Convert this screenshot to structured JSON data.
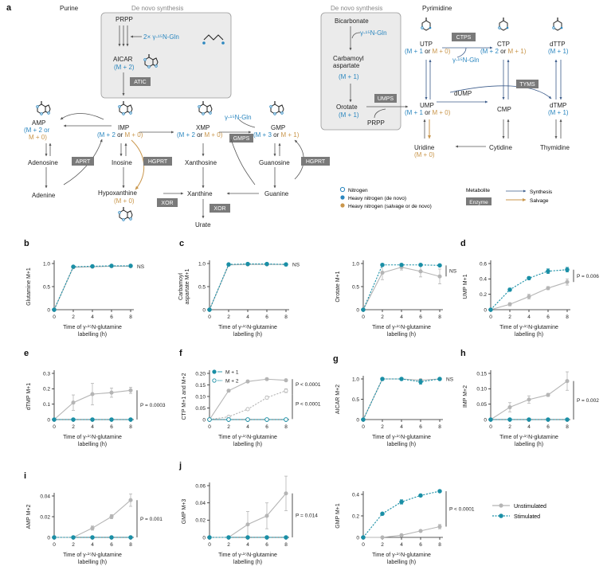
{
  "panel_a": {
    "letter": "a",
    "purine": "Purine",
    "pyrimidine": "Pyrimidine",
    "denovo_left": "De novo synthesis",
    "denovo_right": "De novo synthesis",
    "prpp_top": "PRPP",
    "gln_left": "2× γ-¹⁵N-Gln",
    "aicar": "AICAR",
    "aicar_m": "(M + 2)",
    "atic": "ATIC",
    "amp": "AMP",
    "amp_m1": "(M + 2 or",
    "amp_m2": "M + 0)",
    "imp": "IMP",
    "imp_m_a": "(M + 2",
    "imp_m_b": " or ",
    "imp_m_c": "M + 0)",
    "xmp": "XMP",
    "xmp_m_a": "(M + 2",
    "xmp_m_b": " or ",
    "xmp_m_c": "M + 0)",
    "gmp": "GMP",
    "gmp_m_a": "(M + 3",
    "gmp_m_b": " or ",
    "gmp_m_c": "M + 1)",
    "gln_gmp": "γ-¹⁵N-Gln",
    "gmps": "GMPS",
    "adenosine": "Adenosine",
    "aprt": "APRT",
    "adenine": "Adenine",
    "inosine": "Inosine",
    "hgprt1": "HGPRT",
    "hgprt2": "HGPRT",
    "xanthosine": "Xanthosine",
    "guanosine": "Guanosine",
    "hypoxanthine": "Hypoxanthine",
    "hypo_m": "(M + 0)",
    "xor1": "XOR",
    "xor2": "XOR",
    "xanthine": "Xanthine",
    "guanine": "Guanine",
    "urate": "Urate",
    "bicarbonate": "Bicarbonate",
    "gln_right": "γ-¹⁵N-Gln",
    "carbamoyl1": "Carbamoyl",
    "carbamoyl2": "aspartate",
    "carb_m": "(M + 1)",
    "orotate": "Orotate",
    "orot_m": "(M + 1)",
    "umps": "UMPS",
    "prpp_right": "PRPP",
    "utp": "UTP",
    "utp_m_a": "(M + 1",
    "utp_m_b": " or ",
    "utp_m_c": "M + 0)",
    "ctps": "CTPS",
    "gln_ctp": "γ-¹⁵N-Gln",
    "ctp": "CTP",
    "ctp_m_a": "(M + 2",
    "ctp_m_b": " or ",
    "ctp_m_c": "M + 1)",
    "dttp": "dTTP",
    "dttp_m": "(M + 1)",
    "ump": "UMP",
    "ump_m_a": "(M + 1",
    "ump_m_b": " or ",
    "ump_m_c": "M + 0)",
    "dump": "dUMP",
    "tyms": "TYMS",
    "cmp": "CMP",
    "dtmp": "dTMP",
    "dtmp_m": "(M + 1)",
    "uridine": "Uridine",
    "uridine_m": "(M + 0)",
    "cytidine": "Cytidine",
    "thymidine": "Thymidine"
  },
  "legend_a": {
    "nitrogen": "Nitrogen",
    "heavy_denovo": "Heavy nitrogen (de novo)",
    "heavy_salvage": "Heavy nitrogen (salvage or de novo)",
    "metabolite": "Metabolite",
    "enzyme": "Enzyme",
    "synthesis": "Synthesis",
    "salvage": "Salvage"
  },
  "colors": {
    "stimulated": "#1a8fa6",
    "unstimulated": "#b5b5b5",
    "label_blue": "#2a86bf",
    "label_gold": "#c9964b",
    "enzyme_box": "#7a7a7a",
    "denovo_box": "#ebebeb"
  },
  "xaxis_label_1": "Time of γ-¹⁵N-glutamine",
  "xaxis_label_2": "labelling (h)",
  "bottom_legend": {
    "unstimulated": "Unstimulated",
    "stimulated": "Stimulated"
  },
  "chart_data": [
    {
      "id": "b",
      "letter": "b",
      "type": "line",
      "ylabel": [
        "Glutamine M+1"
      ],
      "ylim": [
        0,
        1.0
      ],
      "yticks": [
        0,
        0.5,
        1.0
      ],
      "ytick_labels": [
        "0",
        "0.5",
        "1.0"
      ],
      "x": [
        0,
        2,
        4,
        6,
        8
      ],
      "series": [
        {
          "name": "Unstimulated",
          "values": [
            0,
            0.92,
            0.93,
            0.94,
            0.94
          ],
          "err": [
            0,
            0.01,
            0.01,
            0.01,
            0.01
          ]
        },
        {
          "name": "Stimulated",
          "values": [
            0,
            0.93,
            0.94,
            0.95,
            0.95
          ],
          "err": [
            0,
            0.01,
            0.01,
            0.01,
            0.01
          ]
        }
      ],
      "annotations": [
        {
          "text": "NS",
          "bracket": false
        }
      ]
    },
    {
      "id": "c1",
      "letter": "c",
      "type": "line",
      "ylabel": [
        "Carbamoyl",
        "aspartate M+1"
      ],
      "ylim": [
        0,
        1.0
      ],
      "yticks": [
        0,
        0.5,
        1.0
      ],
      "ytick_labels": [
        "0",
        "0.5",
        "1.0"
      ],
      "x": [
        0,
        2,
        4,
        6,
        8
      ],
      "series": [
        {
          "name": "Unstimulated",
          "values": [
            0,
            0.97,
            0.98,
            0.98,
            0.98
          ],
          "err": [
            0,
            0.01,
            0.01,
            0.01,
            0.02
          ]
        },
        {
          "name": "Stimulated",
          "values": [
            0,
            0.98,
            0.99,
            0.99,
            0.98
          ],
          "err": [
            0,
            0.01,
            0.01,
            0.01,
            0.03
          ]
        }
      ],
      "annotations": [
        {
          "text": "NS",
          "bracket": false
        }
      ]
    },
    {
      "id": "c2",
      "letter": "",
      "type": "line",
      "ylabel": [
        "Orotate M+1"
      ],
      "ylim": [
        0,
        1.0
      ],
      "yticks": [
        0,
        0.5,
        1.0
      ],
      "ytick_labels": [
        "0",
        "0.5",
        "1.0"
      ],
      "x": [
        0,
        2,
        4,
        6,
        8
      ],
      "series": [
        {
          "name": "Unstimulated",
          "values": [
            0,
            0.8,
            0.92,
            0.83,
            0.72
          ],
          "err": [
            0,
            0.15,
            0.06,
            0.12,
            0.16
          ]
        },
        {
          "name": "Stimulated",
          "values": [
            0,
            0.97,
            0.97,
            0.97,
            0.96
          ],
          "err": [
            0,
            0.02,
            0.02,
            0.02,
            0.02
          ]
        }
      ],
      "annotations": [
        {
          "text": "NS",
          "bracket": true
        }
      ]
    },
    {
      "id": "d",
      "letter": "d",
      "type": "line",
      "ylabel": [
        "UMP M+1"
      ],
      "ylim": [
        0,
        0.6
      ],
      "yticks": [
        0,
        0.2,
        0.4,
        0.6
      ],
      "ytick_labels": [
        "0",
        "0.2",
        "0.4",
        "0.6"
      ],
      "x": [
        0,
        2,
        4,
        6,
        8
      ],
      "series": [
        {
          "name": "Unstimulated",
          "values": [
            0,
            0.07,
            0.17,
            0.28,
            0.36
          ],
          "err": [
            0,
            0.02,
            0.03,
            0.02,
            0.04
          ]
        },
        {
          "name": "Stimulated",
          "values": [
            0,
            0.26,
            0.41,
            0.5,
            0.52
          ],
          "err": [
            0,
            0.02,
            0.02,
            0.03,
            0.03
          ]
        }
      ],
      "annotations": [
        {
          "text": "P = 0.006",
          "bracket": true
        }
      ]
    },
    {
      "id": "e",
      "letter": "e",
      "type": "line",
      "ylabel": [
        "dTMP M+1"
      ],
      "ylim": [
        0,
        0.3
      ],
      "yticks": [
        0,
        0.1,
        0.2,
        0.3
      ],
      "ytick_labels": [
        "0",
        "0.1",
        "0.2",
        "0.3"
      ],
      "x": [
        0,
        2,
        4,
        6,
        8
      ],
      "series": [
        {
          "name": "Unstimulated",
          "values": [
            0,
            0.11,
            0.165,
            0.175,
            0.19
          ],
          "err": [
            0,
            0.05,
            0.07,
            0.03,
            0.02
          ]
        },
        {
          "name": "Stimulated",
          "values": [
            0,
            0,
            0,
            0,
            0
          ],
          "err": [
            0,
            0,
            0,
            0,
            0
          ]
        }
      ],
      "annotations": [
        {
          "text": "P = 0.0003",
          "bracket": true
        }
      ]
    },
    {
      "id": "f",
      "letter": "f",
      "type": "line",
      "ylabel": [
        "CTP M+1 and M+2"
      ],
      "ylim": [
        0,
        0.2
      ],
      "yticks": [
        0,
        0.05,
        0.1,
        0.15,
        0.2
      ],
      "ytick_labels": [
        "0",
        "0.05",
        "0.10",
        "0.15",
        "0.20"
      ],
      "x": [
        0,
        2,
        4,
        6,
        8
      ],
      "series": [
        {
          "name": "Unstim M+1",
          "values": [
            0,
            0.125,
            0.165,
            0.175,
            0.17
          ],
          "err": [
            0,
            0.005,
            0.005,
            0.005,
            0.005
          ]
        },
        {
          "name": "Unstim M+2",
          "values": [
            0,
            0.012,
            0.045,
            0.095,
            0.125
          ],
          "err": [
            0,
            0.003,
            0.004,
            0.006,
            0.008
          ]
        },
        {
          "name": "Stim M+1",
          "values": [
            0,
            0,
            0,
            0,
            0
          ],
          "err": [
            0,
            0,
            0,
            0,
            0
          ]
        },
        {
          "name": "Stim M+2",
          "values": [
            0,
            0,
            0,
            0,
            0
          ],
          "err": [
            0,
            0,
            0,
            0,
            0
          ]
        }
      ],
      "legend": [
        "M + 1",
        "M + 2"
      ],
      "annotations": [
        {
          "text": "P < 0.0001",
          "bracket": true
        },
        {
          "text": "P < 0.0001",
          "bracket": true
        }
      ]
    },
    {
      "id": "g",
      "letter": "g",
      "type": "line",
      "ylabel": [
        "AICAR M+2"
      ],
      "ylim": [
        0,
        1.0
      ],
      "yticks": [
        0,
        0.5,
        1.0
      ],
      "ytick_labels": [
        "0",
        "0.5",
        "1.0"
      ],
      "x": [
        0,
        2,
        4,
        6,
        8
      ],
      "series": [
        {
          "name": "Unstimulated",
          "values": [
            0,
            1.0,
            1.0,
            0.97,
            1.0
          ],
          "err": [
            0,
            0.01,
            0.01,
            0.03,
            0.01
          ]
        },
        {
          "name": "Stimulated",
          "values": [
            0,
            1.0,
            1.0,
            0.93,
            1.0
          ],
          "err": [
            0,
            0.01,
            0.01,
            0.06,
            0.01
          ]
        }
      ],
      "annotations": [
        {
          "text": "NS",
          "bracket": false
        }
      ]
    },
    {
      "id": "h",
      "letter": "h",
      "type": "line",
      "ylabel": [
        "IMP M+2"
      ],
      "ylim": [
        0,
        0.15
      ],
      "yticks": [
        0,
        0.05,
        0.1,
        0.15
      ],
      "ytick_labels": [
        "0",
        "0.05",
        "0.10",
        "0.15"
      ],
      "x": [
        0,
        2,
        4,
        6,
        8
      ],
      "series": [
        {
          "name": "Unstimulated",
          "values": [
            0,
            0.04,
            0.065,
            0.08,
            0.125
          ],
          "err": [
            0,
            0.015,
            0.012,
            0.005,
            0.03
          ]
        },
        {
          "name": "Stimulated",
          "values": [
            0,
            0,
            0,
            0,
            0
          ],
          "err": [
            0,
            0,
            0,
            0,
            0
          ]
        }
      ],
      "annotations": [
        {
          "text": "P = 0.002",
          "bracket": true
        }
      ]
    },
    {
      "id": "i",
      "letter": "i",
      "type": "line",
      "ylabel": [
        "AMP M+2"
      ],
      "ylim": [
        0,
        0.04
      ],
      "yticks": [
        0,
        0.02,
        0.04
      ],
      "ytick_labels": [
        "0",
        "0.02",
        "0.04"
      ],
      "x": [
        0,
        2,
        4,
        6,
        8
      ],
      "series": [
        {
          "name": "Unstimulated",
          "values": [
            0,
            0,
            0.009,
            0.02,
            0.036
          ],
          "err": [
            0,
            0,
            0.002,
            0.002,
            0.006
          ]
        },
        {
          "name": "Stimulated",
          "values": [
            0,
            0,
            0,
            0,
            0
          ],
          "err": [
            0,
            0,
            0,
            0,
            0
          ]
        }
      ],
      "annotations": [
        {
          "text": "P = 0.001",
          "bracket": true
        }
      ]
    },
    {
      "id": "j1",
      "letter": "j",
      "type": "line",
      "ylabel": [
        "GMP M+3"
      ],
      "ylim": [
        0,
        0.06
      ],
      "yticks": [
        0,
        0.02,
        0.04,
        0.06
      ],
      "ytick_labels": [
        "0",
        "0.02",
        "0.04",
        "0.06"
      ],
      "x": [
        0,
        2,
        4,
        6,
        8
      ],
      "series": [
        {
          "name": "Unstimulated",
          "values": [
            0,
            0,
            0.015,
            0.025,
            0.051
          ],
          "err": [
            0,
            0,
            0.015,
            0.015,
            0.02
          ]
        },
        {
          "name": "Stimulated",
          "values": [
            0,
            0,
            0,
            0,
            0
          ],
          "err": [
            0,
            0,
            0,
            0,
            0
          ]
        }
      ],
      "annotations": [
        {
          "text": "P = 0.014",
          "bracket": true
        }
      ]
    },
    {
      "id": "j2",
      "letter": "",
      "type": "line",
      "ylabel": [
        "GMP M+1"
      ],
      "ylim": [
        0,
        0.4
      ],
      "yticks": [
        0,
        0.2,
        0.4
      ],
      "ytick_labels": [
        "0",
        "0.2",
        "0.4"
      ],
      "x": [
        0,
        2,
        4,
        6,
        8
      ],
      "series": [
        {
          "name": "Unstimulated",
          "values": [
            0,
            0,
            0.02,
            0.06,
            0.1
          ],
          "err": [
            0,
            0,
            0.01,
            0.01,
            0.02
          ]
        },
        {
          "name": "Stimulated",
          "values": [
            0,
            0.22,
            0.33,
            0.39,
            0.43
          ],
          "err": [
            0,
            0.01,
            0.02,
            0.01,
            0.01
          ]
        }
      ],
      "annotations": [
        {
          "text": "P < 0.0001",
          "bracket": true
        }
      ]
    }
  ]
}
